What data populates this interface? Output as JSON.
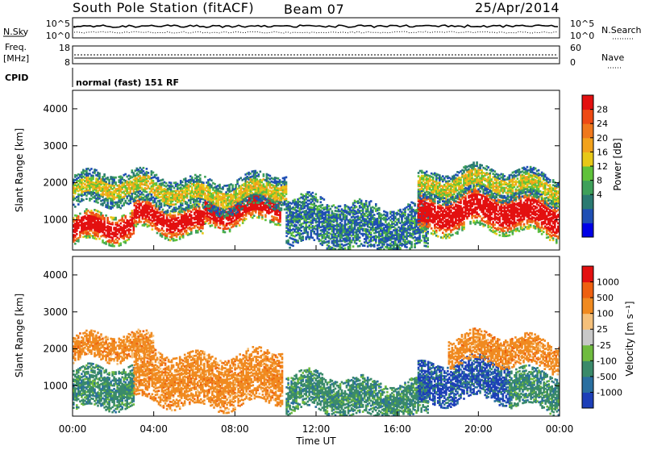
{
  "header": {
    "title": "South Pole Station (fitACF)",
    "beam": "Beam 07",
    "date": "25/Apr/2014"
  },
  "top_panels": {
    "nsky_label": "N.Sky",
    "nsky_ticks": [
      "10^5",
      "10^0"
    ],
    "nsearch_label": "N.Search",
    "nsearch_ticks": [
      "10^5",
      "10^0"
    ],
    "freq_label": "Freq.",
    "freq_unit": "[MHz]",
    "freq_ticks": [
      "18",
      "8"
    ],
    "nave_label": "Nave",
    "nave_ticks": [
      "60",
      "0"
    ],
    "cpid_label": "CPID",
    "cpid_text": "normal (fast) 151 RF"
  },
  "time_axis": {
    "label": "Time UT",
    "ticks": [
      "00:00",
      "04:00",
      "08:00",
      "12:00",
      "16:00",
      "20:00",
      "00:00"
    ]
  },
  "chart_data": [
    {
      "type": "heatmap",
      "name": "power",
      "ylabel": "Slant Range [km]",
      "yticks": [
        "1000",
        "2000",
        "3000",
        "4000"
      ],
      "ylim": [
        180,
        4500
      ],
      "xlim": [
        0,
        24
      ],
      "colorbar": {
        "label": "Power [dB]",
        "ticks": [
          "28",
          "24",
          "20",
          "16",
          "12",
          "8",
          "4"
        ],
        "colors": [
          "#0000e6",
          "#1f4fb4",
          "#2a7a72",
          "#3ea05a",
          "#5fc23a",
          "#e7c817",
          "#f2a21c",
          "#f0781c",
          "#ee4a14",
          "#e31010"
        ]
      },
      "bands": [
        {
          "t0": 0.0,
          "t1": 3.0,
          "r0": 300,
          "r1": 1100,
          "level": "high"
        },
        {
          "t0": 3.0,
          "t1": 6.5,
          "r0": 600,
          "r1": 1400,
          "level": "high"
        },
        {
          "t0": 6.5,
          "t1": 10.2,
          "r0": 900,
          "r1": 1700,
          "level": "high"
        },
        {
          "t0": 0.0,
          "t1": 10.5,
          "r0": 1300,
          "r1": 2200,
          "level": "mid"
        },
        {
          "t0": 10.5,
          "t1": 17.5,
          "r0": 200,
          "r1": 1500,
          "level": "low"
        },
        {
          "t0": 17.0,
          "t1": 24.0,
          "r0": 600,
          "r1": 1700,
          "level": "high"
        },
        {
          "t0": 17.0,
          "t1": 24.0,
          "r0": 1500,
          "r1": 2300,
          "level": "mid"
        }
      ]
    },
    {
      "type": "heatmap",
      "name": "velocity",
      "ylabel": "Slant Range [km]",
      "yticks": [
        "1000",
        "2000",
        "3000",
        "4000"
      ],
      "ylim": [
        180,
        4500
      ],
      "xlim": [
        0,
        24
      ],
      "colorbar": {
        "label": "Velocity [m s⁻¹]",
        "ticks": [
          "1000",
          "500",
          "100",
          "25",
          "-25",
          "-100",
          "-500",
          "-1000"
        ],
        "colors": [
          "#1d3fb8",
          "#2a6fa0",
          "#3a8a6a",
          "#6fbb3f",
          "#c8c8c8",
          "#f5c07a",
          "#f08a20",
          "#ee6010",
          "#e31010"
        ]
      },
      "bands": [
        {
          "t0": 0.0,
          "t1": 3.0,
          "r0": 300,
          "r1": 1400,
          "level": "green"
        },
        {
          "t0": 3.0,
          "t1": 10.3,
          "r0": 500,
          "r1": 1900,
          "level": "orange"
        },
        {
          "t0": 0.0,
          "t1": 4.0,
          "r0": 1600,
          "r1": 2300,
          "level": "orange"
        },
        {
          "t0": 10.5,
          "t1": 17.5,
          "r0": 200,
          "r1": 1200,
          "level": "green"
        },
        {
          "t0": 17.0,
          "t1": 21.5,
          "r0": 500,
          "r1": 1600,
          "level": "blue"
        },
        {
          "t0": 21.5,
          "t1": 24.0,
          "r0": 400,
          "r1": 1400,
          "level": "green"
        },
        {
          "t0": 18.5,
          "t1": 24.0,
          "r0": 1500,
          "r1": 2300,
          "level": "orange"
        }
      ]
    }
  ]
}
